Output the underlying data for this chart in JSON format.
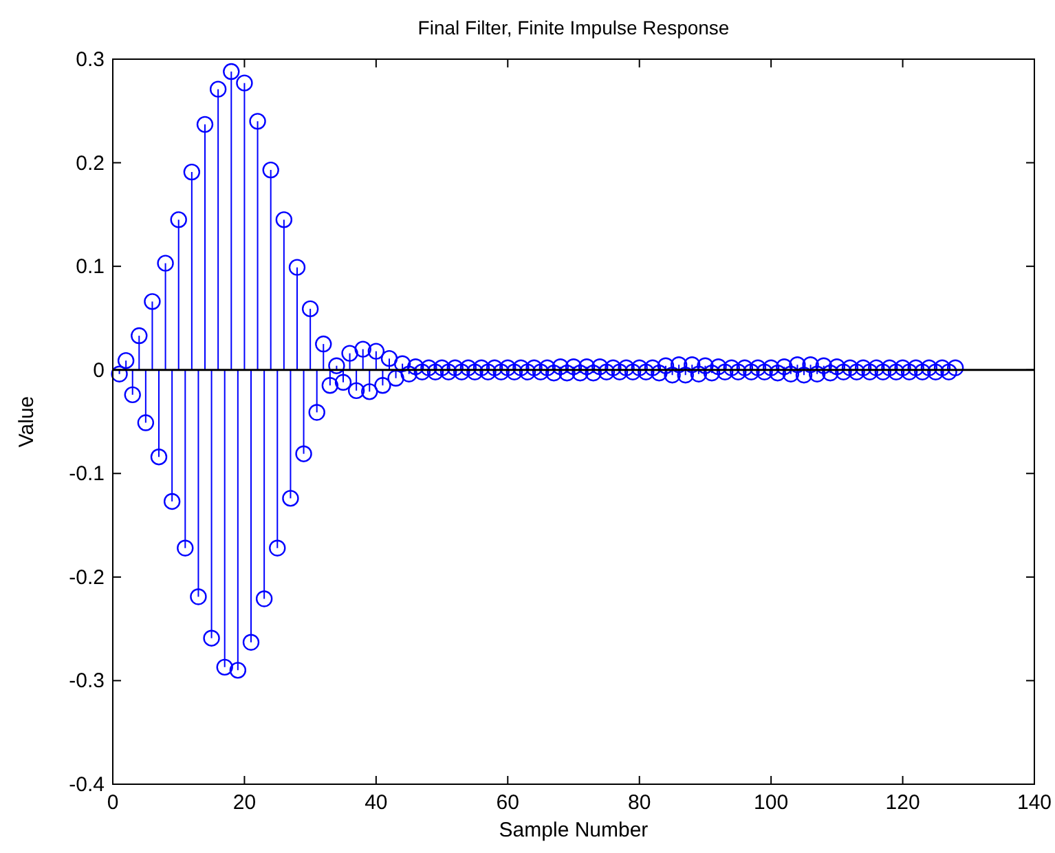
{
  "chart_data": {
    "type": "lollipop",
    "title": "Final Filter, Finite Impulse Response",
    "xlabel": "Sample Number",
    "ylabel": "Value",
    "color": "#0000ff",
    "marker": "circle",
    "x": [
      1,
      2,
      3,
      4,
      5,
      6,
      7,
      8,
      9,
      10,
      11,
      12,
      13,
      14,
      15,
      16,
      17,
      18,
      19,
      20,
      21,
      22,
      23,
      24,
      25,
      26,
      27,
      28,
      29,
      30,
      31,
      32,
      33,
      34,
      35,
      36,
      37,
      38,
      39,
      40,
      41,
      42,
      43,
      44,
      45,
      46,
      47,
      48,
      49,
      50,
      51,
      52,
      53,
      54,
      55,
      56,
      57,
      58,
      59,
      60,
      61,
      62,
      63,
      64,
      65,
      66,
      67,
      68,
      69,
      70,
      71,
      72,
      73,
      74,
      75,
      76,
      77,
      78,
      79,
      80,
      81,
      82,
      83,
      84,
      85,
      86,
      87,
      88,
      89,
      90,
      91,
      92,
      93,
      94,
      95,
      96,
      97,
      98,
      99,
      100,
      101,
      102,
      103,
      104,
      105,
      106,
      107,
      108,
      109,
      110,
      111,
      112,
      113,
      114,
      115,
      116,
      117,
      118,
      119,
      120,
      121,
      122,
      123,
      124,
      125,
      126,
      127,
      128
    ],
    "values": [
      -0.004,
      0.009,
      -0.024,
      0.033,
      -0.051,
      0.066,
      -0.084,
      0.103,
      -0.127,
      0.145,
      -0.172,
      0.191,
      -0.219,
      0.237,
      -0.259,
      0.271,
      -0.287,
      0.288,
      -0.29,
      0.277,
      -0.263,
      0.24,
      -0.221,
      0.193,
      -0.172,
      0.145,
      -0.124,
      0.099,
      -0.081,
      0.059,
      -0.041,
      0.025,
      -0.015,
      0.004,
      -0.012,
      0.016,
      -0.02,
      0.02,
      -0.021,
      0.018,
      -0.015,
      0.011,
      -0.008,
      0.006,
      -0.004,
      0.003,
      -0.002,
      0.002,
      -0.002,
      0.002,
      -0.002,
      0.002,
      -0.002,
      0.002,
      -0.002,
      0.002,
      -0.002,
      0.002,
      -0.002,
      0.002,
      -0.002,
      0.002,
      -0.002,
      0.002,
      -0.002,
      0.002,
      -0.003,
      0.003,
      -0.003,
      0.003,
      -0.003,
      0.003,
      -0.003,
      0.003,
      -0.002,
      0.002,
      -0.002,
      0.002,
      -0.002,
      0.002,
      -0.002,
      0.002,
      -0.003,
      0.004,
      -0.005,
      0.005,
      -0.005,
      0.005,
      -0.004,
      0.004,
      -0.003,
      0.003,
      -0.002,
      0.002,
      -0.002,
      0.002,
      -0.002,
      0.002,
      -0.002,
      0.002,
      -0.003,
      0.003,
      -0.004,
      0.005,
      -0.005,
      0.005,
      -0.004,
      0.004,
      -0.003,
      0.003,
      -0.002,
      0.002,
      -0.002,
      0.002,
      -0.002,
      0.002,
      -0.002,
      0.002,
      -0.002,
      0.002,
      -0.002,
      0.002,
      -0.002,
      0.002,
      -0.002,
      0.002,
      -0.002,
      0.002
    ],
    "xlim": [
      0,
      140
    ],
    "xticks": [
      0,
      20,
      40,
      60,
      80,
      100,
      120,
      140
    ],
    "ylim": [
      -0.4,
      0.3
    ],
    "yticks": [
      -0.4,
      -0.3,
      -0.2,
      -0.1,
      0,
      0.1,
      0.2,
      0.3
    ],
    "ref_lines": [
      {
        "axis": "y",
        "value": 0,
        "color": "#000000"
      }
    ]
  }
}
